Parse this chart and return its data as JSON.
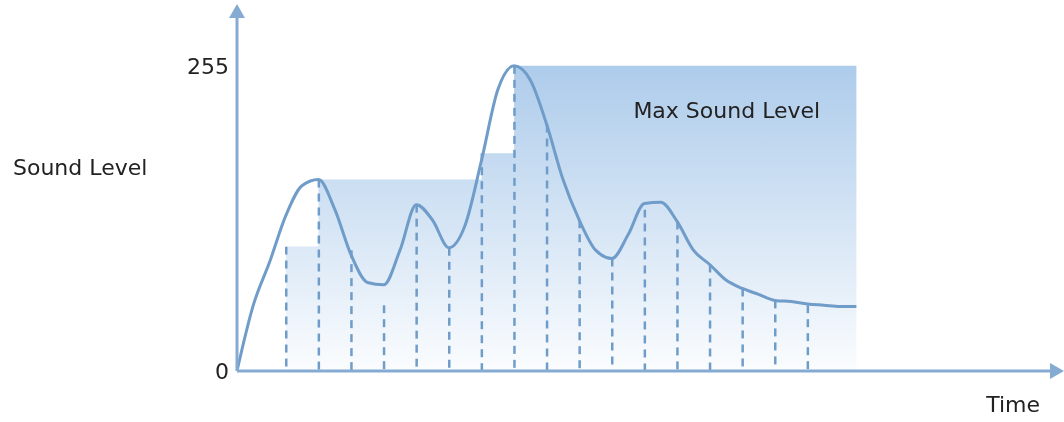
{
  "chart_data": {
    "type": "line",
    "xlabel": "Time",
    "ylabel": "Sound Level",
    "categories": [
      null,
      null,
      null,
      null,
      null,
      null,
      null,
      null,
      null,
      null,
      null,
      null,
      null,
      null,
      null,
      null,
      null,
      null,
      null,
      null,
      null,
      null,
      null,
      null,
      null,
      null,
      null,
      null,
      null,
      null,
      null,
      null,
      null,
      null,
      null,
      null,
      null,
      null,
      null,
      null,
      null,
      null,
      null,
      null,
      null,
      null,
      null,
      null,
      null,
      null,
      null
    ],
    "series": [
      {
        "type": "area",
        "name": "Max Sound Level",
        "color": "#a9c9ea",
        "values": [
          null,
          null,
          null,
          104,
          104,
          160,
          160,
          160,
          160,
          160,
          160,
          160,
          160,
          160,
          160,
          182,
          182,
          255,
          255,
          255,
          255,
          255,
          255,
          255,
          255,
          255,
          255,
          255,
          255,
          255,
          255,
          255,
          255,
          255,
          255,
          255,
          255,
          255,
          255,
          null,
          null,
          null,
          null,
          null,
          null,
          null,
          null,
          null,
          null,
          null,
          null
        ]
      },
      {
        "color": "#6f9cc8",
        "values": [
          0,
          55,
          91,
          130,
          155,
          160,
          135,
          97,
          74,
          72,
          101,
          139,
          126,
          103,
          122,
          176,
          235,
          255,
          243,
          206,
          160,
          126,
          101,
          94,
          114,
          140,
          141,
          125,
          101,
          89,
          76,
          69,
          64,
          59,
          58,
          56,
          55,
          54,
          54,
          null,
          null,
          null,
          null,
          null,
          null,
          null,
          null,
          null,
          null,
          null,
          null
        ]
      },
      {
        "type": "bar",
        "color": "#6f9cc8",
        "line_style": "dashed",
        "values": [
          null,
          null,
          null,
          104,
          null,
          160,
          null,
          101,
          null,
          55,
          null,
          139,
          null,
          103,
          null,
          182,
          null,
          255,
          null,
          206,
          null,
          126,
          null,
          94,
          null,
          135,
          null,
          125,
          null,
          89,
          null,
          69,
          null,
          59,
          null,
          55,
          null,
          null,
          null,
          null,
          null,
          null,
          null,
          null,
          null,
          null,
          null,
          null,
          null,
          null,
          null
        ]
      }
    ],
    "ylim": [
      0,
      300
    ],
    "yticks": [
      0,
      255
    ],
    "tick_labels": "y",
    "grid": false
  }
}
